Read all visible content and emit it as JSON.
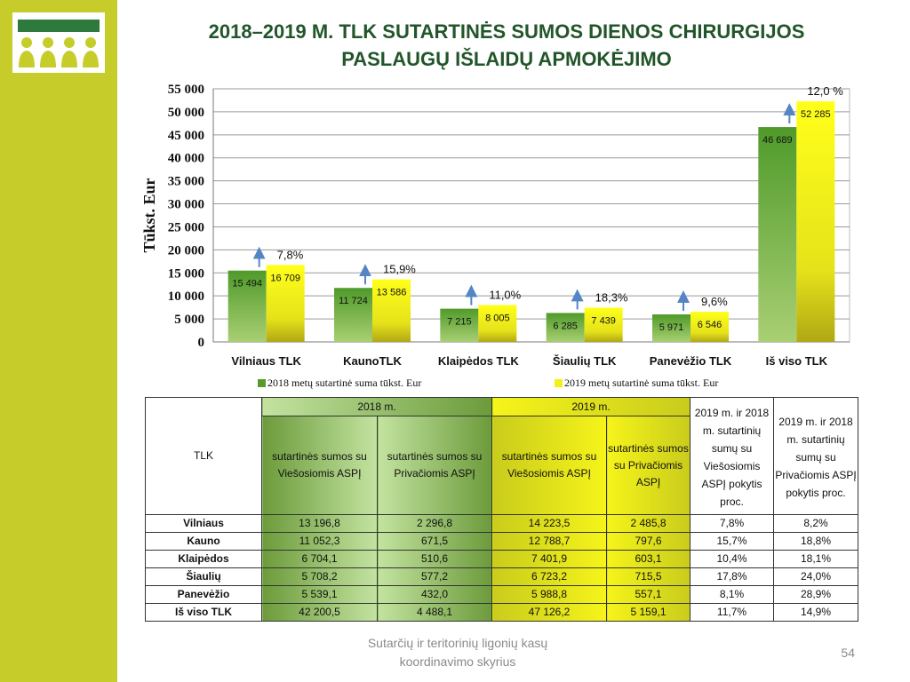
{
  "slide": {
    "title_line1": "2018–2019 M. TLK SUTARTINĖS SUMOS  DIENOS CHIRURGIJOS",
    "title_line2": "PASLAUGŲ IŠLAIDŲ APMOKĖJIMO",
    "footer_line1": "Sutarčių ir teritorinių ligonių kasų",
    "footer_line2": "koordinavimo skyrius",
    "page_number": "54",
    "colors": {
      "sidebar": "#c6cd2b",
      "title": "#22562a",
      "series_2018": "#5a9a2c",
      "series_2019": "#f3f015",
      "arrow": "#5585c5"
    }
  },
  "chart_data": {
    "type": "bar",
    "categories": [
      "Vilniaus TLK",
      "KaunoTLK",
      "Klaipėdos TLK",
      "Šiaulių TLK",
      "Panevėžio TLK",
      "Iš viso TLK"
    ],
    "series": [
      {
        "name": "2018 metų sutartinė suma tūkst. Eur",
        "values": [
          15494,
          11724,
          7215,
          6285,
          5971,
          46689
        ],
        "labels": [
          "15 494",
          "11 724",
          "7 215",
          "6 285",
          "5 971",
          "46 689"
        ]
      },
      {
        "name": "2019 metų sutartinė suma tūkst. Eur",
        "values": [
          16709,
          13586,
          8005,
          7439,
          6546,
          52285
        ],
        "labels": [
          "16 709",
          "13 586",
          "8 005",
          "7 439",
          "6 546",
          "52 285"
        ]
      }
    ],
    "growth_labels": [
      "7,8%",
      "15,9%",
      "11,0%",
      "18,3%",
      "9,6%",
      "12,0 %"
    ],
    "ylabel": "Tūkst. Eur",
    "xlabel": "",
    "ylim": [
      0,
      55000
    ],
    "yticks": [
      0,
      5000,
      10000,
      15000,
      20000,
      25000,
      30000,
      35000,
      40000,
      45000,
      50000,
      55000
    ],
    "ytick_labels": [
      "0",
      "5 000",
      "10 000",
      "15 000",
      "20 000",
      "25 000",
      "30 000",
      "35 000",
      "40 000",
      "45 000",
      "50 000",
      "55 000"
    ],
    "grid": true,
    "legend_position": "bottom"
  },
  "table": {
    "corner_header": "TLK",
    "group_2018": "2018 m.",
    "group_2019": "2019 m.",
    "sub_public_2018": "sutartinės sumos su Viešosiomis ASPĮ",
    "sub_private_2018": "sutartinės sumos su Privačiomis ASPĮ",
    "sub_public_2019": "sutartinės sumos su Viešosiomis ASPĮ",
    "sub_private_2019": "sutartinės sumos su Privačiomis ASPĮ",
    "change_public": "2019 m. ir 2018 m. sutartinių sumų su Viešosiomis ASPĮ pokytis proc.",
    "change_private": "2019 m. ir 2018 m. sutartinių sumų su Privačiomis ASPĮ pokytis proc.",
    "rows": [
      [
        "Vilniaus",
        "13 196,8",
        "2 296,8",
        "14 223,5",
        "2 485,8",
        "7,8%",
        "8,2%"
      ],
      [
        "Kauno",
        "11 052,3",
        "671,5",
        "12 788,7",
        "797,6",
        "15,7%",
        "18,8%"
      ],
      [
        "Klaipėdos",
        "6 704,1",
        "510,6",
        "7 401,9",
        "603,1",
        "10,4%",
        "18,1%"
      ],
      [
        "Šiaulių",
        "5 708,2",
        "577,2",
        "6 723,2",
        "715,5",
        "17,8%",
        "24,0%"
      ],
      [
        "Panevėžio",
        "5 539,1",
        "432,0",
        "5 988,8",
        "557,1",
        "8,1%",
        "28,9%"
      ],
      [
        "Iš viso TLK",
        "42 200,5",
        "4 488,1",
        "47 126,2",
        "5 159,1",
        "11,7%",
        "14,9%"
      ]
    ]
  }
}
